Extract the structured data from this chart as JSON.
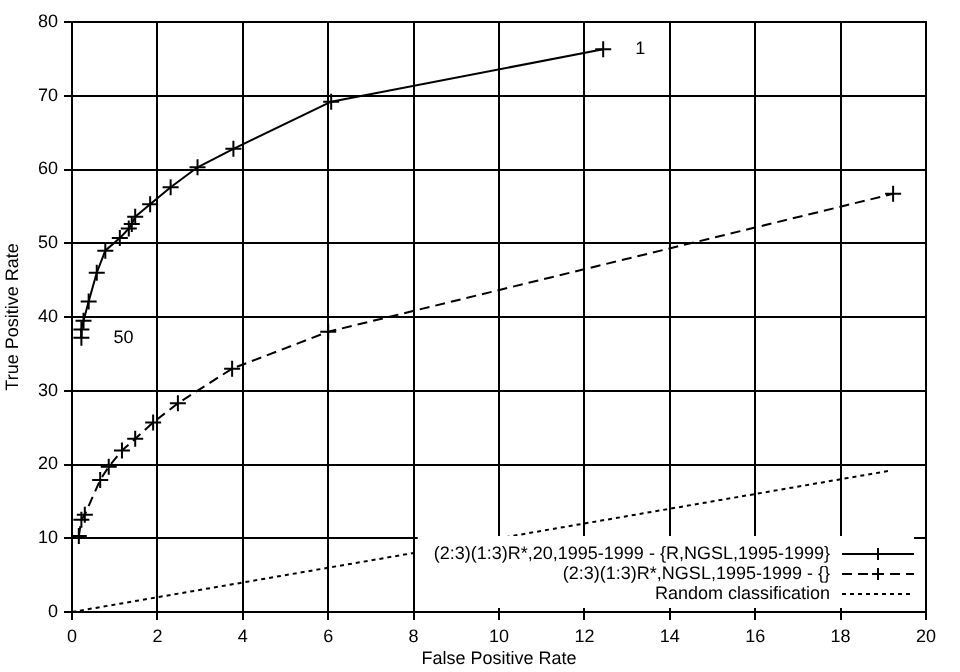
{
  "chart_data": {
    "type": "line",
    "xlabel": "False Positive Rate",
    "ylabel": "True Positive Rate",
    "xlim": [
      0,
      20
    ],
    "ylim": [
      0,
      80
    ],
    "xticks": [
      0,
      2,
      4,
      6,
      8,
      10,
      12,
      14,
      16,
      18,
      20
    ],
    "yticks": [
      0,
      10,
      20,
      30,
      40,
      50,
      60,
      70,
      80
    ],
    "grid": true,
    "legend": "bottom right",
    "series": [
      {
        "name": "(2:3)(1:3)R*,20,1995-1999 - {R,NGSL,1995-1999}",
        "color": "#000000",
        "marker": "cross",
        "line_style": "solid",
        "x": [
          0.22,
          0.22,
          0.27,
          0.39,
          0.58,
          0.78,
          1.12,
          1.33,
          1.4,
          1.48,
          1.83,
          2.31,
          2.94,
          3.78,
          6.07,
          12.44
        ],
        "values": [
          37.2,
          38.3,
          39.5,
          42.1,
          46,
          49,
          50.7,
          52,
          52.6,
          53.6,
          55.3,
          57.6,
          60.3,
          62.8,
          69.2,
          76.3
        ]
      },
      {
        "name": "(2:3)(1:3)R*,NGSL,1995-1999 - {}",
        "color": "#000000",
        "marker": "cross",
        "line_style": "dashed",
        "x": [
          0.16,
          0.22,
          0.3,
          0.66,
          0.86,
          1.17,
          1.48,
          1.9,
          2.48,
          3.75,
          6,
          19.23
        ],
        "values": [
          10.3,
          12.5,
          13.2,
          17.9,
          19.7,
          21.9,
          23.5,
          25.7,
          28.3,
          33,
          38,
          56.7
        ]
      },
      {
        "name": "Random classification",
        "color": "#000000",
        "marker": "none",
        "line_style": "dotted",
        "x": [
          0,
          19.2
        ],
        "values": [
          0,
          19.2
        ]
      }
    ],
    "annotations": [
      {
        "text": "1",
        "x": 12.44,
        "y": 76.3
      },
      {
        "text": "50",
        "x": 0.22,
        "y": 37.2
      }
    ]
  }
}
